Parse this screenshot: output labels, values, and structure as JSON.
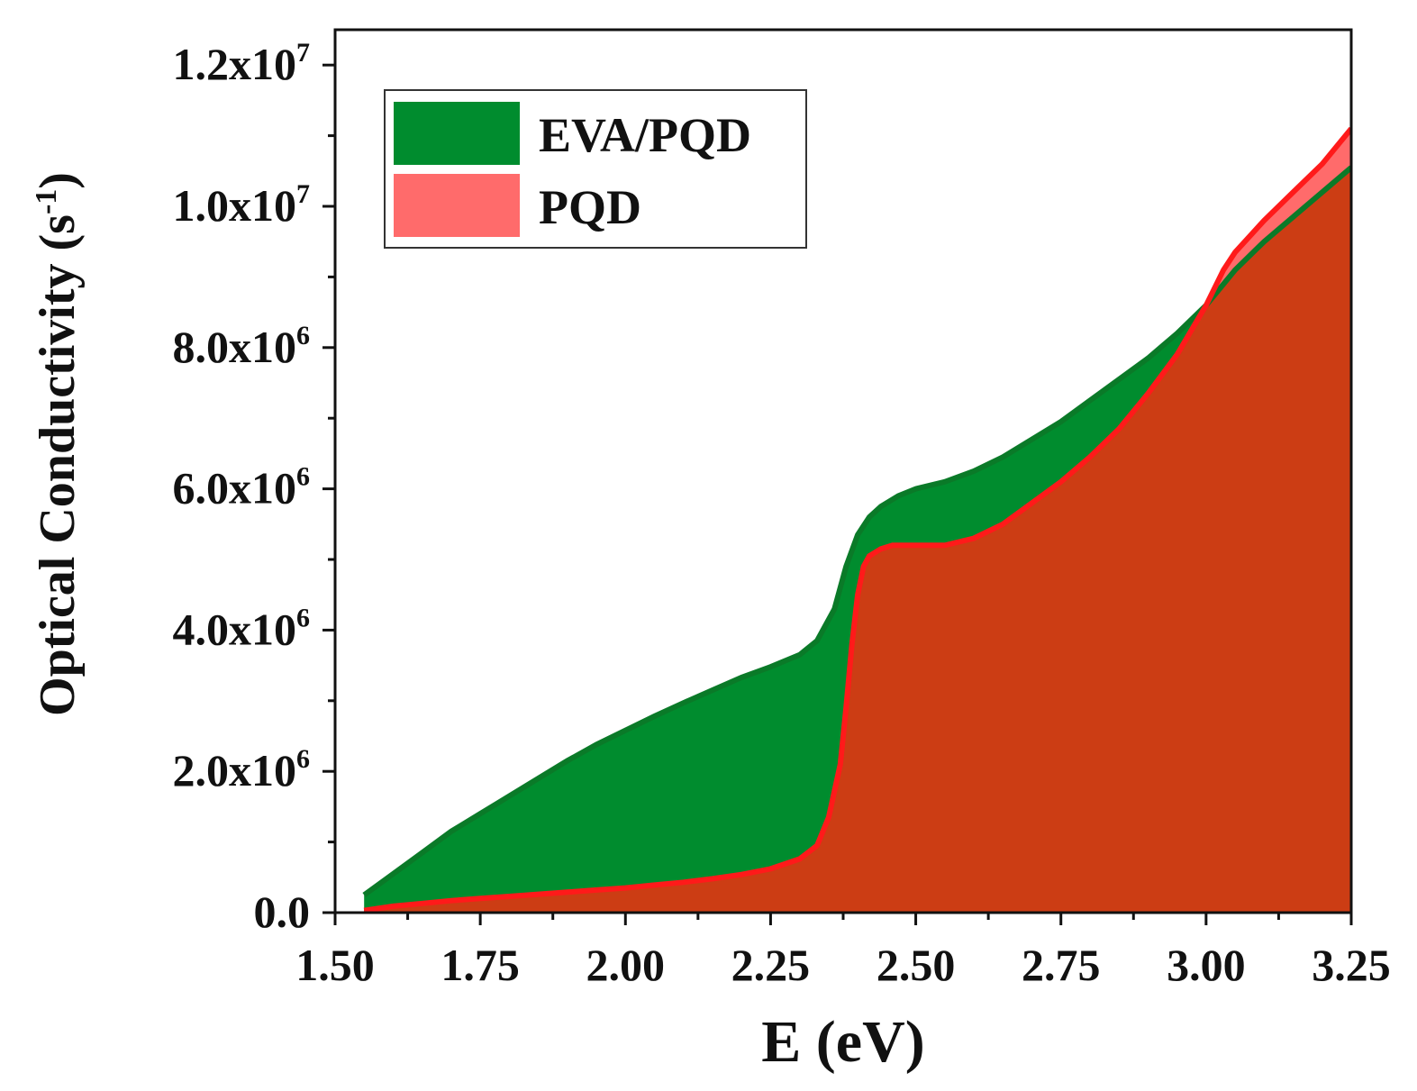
{
  "chart_data": {
    "type": "area",
    "xlabel": "E (eV)",
    "ylabel_main": "Optical Conductivity (s",
    "ylabel_sup": "-1",
    "ylabel_close": ")",
    "xlim": [
      1.5,
      3.25
    ],
    "ylim": [
      0,
      12500000
    ],
    "x_ticks": [
      1.5,
      1.75,
      2.0,
      2.25,
      2.5,
      2.75,
      3.0,
      3.25
    ],
    "x_tick_labels": [
      "1.50",
      "1.75",
      "2.00",
      "2.25",
      "2.50",
      "2.75",
      "3.00",
      "3.25"
    ],
    "y_ticks": [
      0,
      2000000,
      4000000,
      6000000,
      8000000,
      10000000,
      12000000
    ],
    "y_tick_labels": [
      {
        "base": "0.0",
        "exp": ""
      },
      {
        "base": "2.0x10",
        "exp": "6"
      },
      {
        "base": "4.0x10",
        "exp": "6"
      },
      {
        "base": "6.0x10",
        "exp": "6"
      },
      {
        "base": "8.0x10",
        "exp": "6"
      },
      {
        "base": "1.0x10",
        "exp": "7"
      },
      {
        "base": "1.2x10",
        "exp": "7"
      }
    ],
    "legend_position": "top-left",
    "series": [
      {
        "name": "EVA/PQD",
        "fill": "#008c2e",
        "line": "#0a7a28",
        "x": [
          1.55,
          1.6,
          1.65,
          1.7,
          1.75,
          1.8,
          1.85,
          1.9,
          1.95,
          2.0,
          2.05,
          2.1,
          2.15,
          2.2,
          2.25,
          2.3,
          2.33,
          2.36,
          2.38,
          2.4,
          2.42,
          2.44,
          2.47,
          2.5,
          2.55,
          2.6,
          2.65,
          2.7,
          2.75,
          2.8,
          2.85,
          2.9,
          2.95,
          3.0,
          3.05,
          3.1,
          3.15,
          3.2,
          3.25
        ],
        "y": [
          250000,
          550000,
          850000,
          1150000,
          1400000,
          1650000,
          1900000,
          2150000,
          2380000,
          2580000,
          2780000,
          2970000,
          3150000,
          3330000,
          3480000,
          3650000,
          3850000,
          4300000,
          4900000,
          5350000,
          5600000,
          5750000,
          5900000,
          6000000,
          6100000,
          6250000,
          6450000,
          6700000,
          6950000,
          7250000,
          7550000,
          7850000,
          8200000,
          8600000,
          9100000,
          9500000,
          9850000,
          10200000,
          10550000
        ]
      },
      {
        "name": "PQD",
        "fill": "#ff6b6b",
        "overlap_fill": "#cc3d14",
        "line": "#ff1a1a",
        "x": [
          1.55,
          1.6,
          1.65,
          1.7,
          1.75,
          1.8,
          1.85,
          1.9,
          1.95,
          2.0,
          2.05,
          2.1,
          2.15,
          2.2,
          2.25,
          2.3,
          2.33,
          2.35,
          2.37,
          2.38,
          2.39,
          2.4,
          2.41,
          2.42,
          2.44,
          2.46,
          2.5,
          2.55,
          2.6,
          2.65,
          2.7,
          2.75,
          2.8,
          2.85,
          2.9,
          2.95,
          3.0,
          3.03,
          3.05,
          3.1,
          3.15,
          3.2,
          3.25
        ],
        "y": [
          30000,
          90000,
          130000,
          170000,
          200000,
          230000,
          260000,
          290000,
          320000,
          350000,
          390000,
          430000,
          480000,
          540000,
          620000,
          760000,
          950000,
          1350000,
          2100000,
          2900000,
          3800000,
          4500000,
          4900000,
          5050000,
          5150000,
          5200000,
          5200000,
          5200000,
          5300000,
          5500000,
          5800000,
          6100000,
          6450000,
          6850000,
          7350000,
          7900000,
          8600000,
          9100000,
          9350000,
          9800000,
          10200000,
          10600000,
          11100000
        ]
      }
    ]
  }
}
